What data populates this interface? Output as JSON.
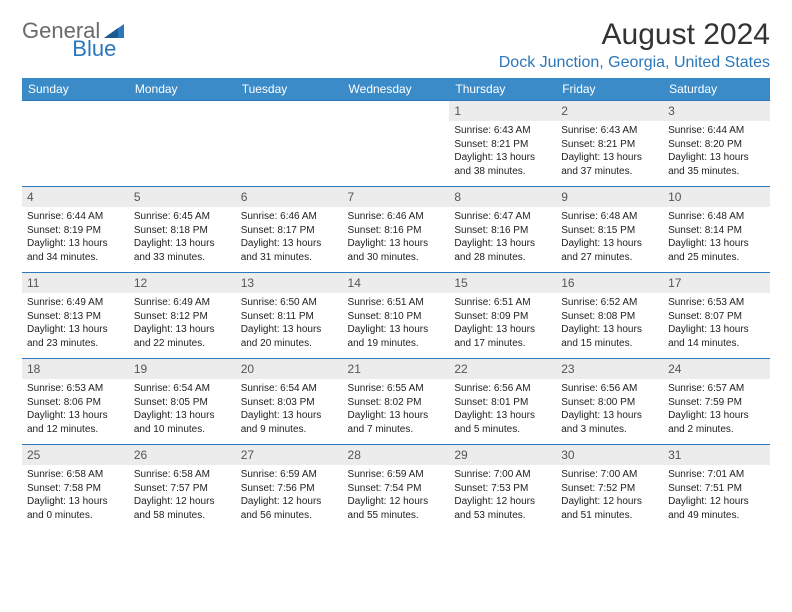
{
  "brand": {
    "general": "General",
    "blue": "Blue"
  },
  "title": "August 2024",
  "location": "Dock Junction, Georgia, United States",
  "colors": {
    "header_bg": "#3b8bc9",
    "header_text": "#ffffff",
    "accent": "#2b77bb",
    "daynum_bg": "#ececec",
    "body_text": "#222222",
    "logo_gray": "#6a6a6a"
  },
  "day_headers": [
    "Sunday",
    "Monday",
    "Tuesday",
    "Wednesday",
    "Thursday",
    "Friday",
    "Saturday"
  ],
  "weeks": [
    [
      null,
      null,
      null,
      null,
      {
        "n": "1",
        "sr": "Sunrise: 6:43 AM",
        "ss": "Sunset: 8:21 PM",
        "dl": "Daylight: 13 hours and 38 minutes."
      },
      {
        "n": "2",
        "sr": "Sunrise: 6:43 AM",
        "ss": "Sunset: 8:21 PM",
        "dl": "Daylight: 13 hours and 37 minutes."
      },
      {
        "n": "3",
        "sr": "Sunrise: 6:44 AM",
        "ss": "Sunset: 8:20 PM",
        "dl": "Daylight: 13 hours and 35 minutes."
      }
    ],
    [
      {
        "n": "4",
        "sr": "Sunrise: 6:44 AM",
        "ss": "Sunset: 8:19 PM",
        "dl": "Daylight: 13 hours and 34 minutes."
      },
      {
        "n": "5",
        "sr": "Sunrise: 6:45 AM",
        "ss": "Sunset: 8:18 PM",
        "dl": "Daylight: 13 hours and 33 minutes."
      },
      {
        "n": "6",
        "sr": "Sunrise: 6:46 AM",
        "ss": "Sunset: 8:17 PM",
        "dl": "Daylight: 13 hours and 31 minutes."
      },
      {
        "n": "7",
        "sr": "Sunrise: 6:46 AM",
        "ss": "Sunset: 8:16 PM",
        "dl": "Daylight: 13 hours and 30 minutes."
      },
      {
        "n": "8",
        "sr": "Sunrise: 6:47 AM",
        "ss": "Sunset: 8:16 PM",
        "dl": "Daylight: 13 hours and 28 minutes."
      },
      {
        "n": "9",
        "sr": "Sunrise: 6:48 AM",
        "ss": "Sunset: 8:15 PM",
        "dl": "Daylight: 13 hours and 27 minutes."
      },
      {
        "n": "10",
        "sr": "Sunrise: 6:48 AM",
        "ss": "Sunset: 8:14 PM",
        "dl": "Daylight: 13 hours and 25 minutes."
      }
    ],
    [
      {
        "n": "11",
        "sr": "Sunrise: 6:49 AM",
        "ss": "Sunset: 8:13 PM",
        "dl": "Daylight: 13 hours and 23 minutes."
      },
      {
        "n": "12",
        "sr": "Sunrise: 6:49 AM",
        "ss": "Sunset: 8:12 PM",
        "dl": "Daylight: 13 hours and 22 minutes."
      },
      {
        "n": "13",
        "sr": "Sunrise: 6:50 AM",
        "ss": "Sunset: 8:11 PM",
        "dl": "Daylight: 13 hours and 20 minutes."
      },
      {
        "n": "14",
        "sr": "Sunrise: 6:51 AM",
        "ss": "Sunset: 8:10 PM",
        "dl": "Daylight: 13 hours and 19 minutes."
      },
      {
        "n": "15",
        "sr": "Sunrise: 6:51 AM",
        "ss": "Sunset: 8:09 PM",
        "dl": "Daylight: 13 hours and 17 minutes."
      },
      {
        "n": "16",
        "sr": "Sunrise: 6:52 AM",
        "ss": "Sunset: 8:08 PM",
        "dl": "Daylight: 13 hours and 15 minutes."
      },
      {
        "n": "17",
        "sr": "Sunrise: 6:53 AM",
        "ss": "Sunset: 8:07 PM",
        "dl": "Daylight: 13 hours and 14 minutes."
      }
    ],
    [
      {
        "n": "18",
        "sr": "Sunrise: 6:53 AM",
        "ss": "Sunset: 8:06 PM",
        "dl": "Daylight: 13 hours and 12 minutes."
      },
      {
        "n": "19",
        "sr": "Sunrise: 6:54 AM",
        "ss": "Sunset: 8:05 PM",
        "dl": "Daylight: 13 hours and 10 minutes."
      },
      {
        "n": "20",
        "sr": "Sunrise: 6:54 AM",
        "ss": "Sunset: 8:03 PM",
        "dl": "Daylight: 13 hours and 9 minutes."
      },
      {
        "n": "21",
        "sr": "Sunrise: 6:55 AM",
        "ss": "Sunset: 8:02 PM",
        "dl": "Daylight: 13 hours and 7 minutes."
      },
      {
        "n": "22",
        "sr": "Sunrise: 6:56 AM",
        "ss": "Sunset: 8:01 PM",
        "dl": "Daylight: 13 hours and 5 minutes."
      },
      {
        "n": "23",
        "sr": "Sunrise: 6:56 AM",
        "ss": "Sunset: 8:00 PM",
        "dl": "Daylight: 13 hours and 3 minutes."
      },
      {
        "n": "24",
        "sr": "Sunrise: 6:57 AM",
        "ss": "Sunset: 7:59 PM",
        "dl": "Daylight: 13 hours and 2 minutes."
      }
    ],
    [
      {
        "n": "25",
        "sr": "Sunrise: 6:58 AM",
        "ss": "Sunset: 7:58 PM",
        "dl": "Daylight: 13 hours and 0 minutes."
      },
      {
        "n": "26",
        "sr": "Sunrise: 6:58 AM",
        "ss": "Sunset: 7:57 PM",
        "dl": "Daylight: 12 hours and 58 minutes."
      },
      {
        "n": "27",
        "sr": "Sunrise: 6:59 AM",
        "ss": "Sunset: 7:56 PM",
        "dl": "Daylight: 12 hours and 56 minutes."
      },
      {
        "n": "28",
        "sr": "Sunrise: 6:59 AM",
        "ss": "Sunset: 7:54 PM",
        "dl": "Daylight: 12 hours and 55 minutes."
      },
      {
        "n": "29",
        "sr": "Sunrise: 7:00 AM",
        "ss": "Sunset: 7:53 PM",
        "dl": "Daylight: 12 hours and 53 minutes."
      },
      {
        "n": "30",
        "sr": "Sunrise: 7:00 AM",
        "ss": "Sunset: 7:52 PM",
        "dl": "Daylight: 12 hours and 51 minutes."
      },
      {
        "n": "31",
        "sr": "Sunrise: 7:01 AM",
        "ss": "Sunset: 7:51 PM",
        "dl": "Daylight: 12 hours and 49 minutes."
      }
    ]
  ]
}
